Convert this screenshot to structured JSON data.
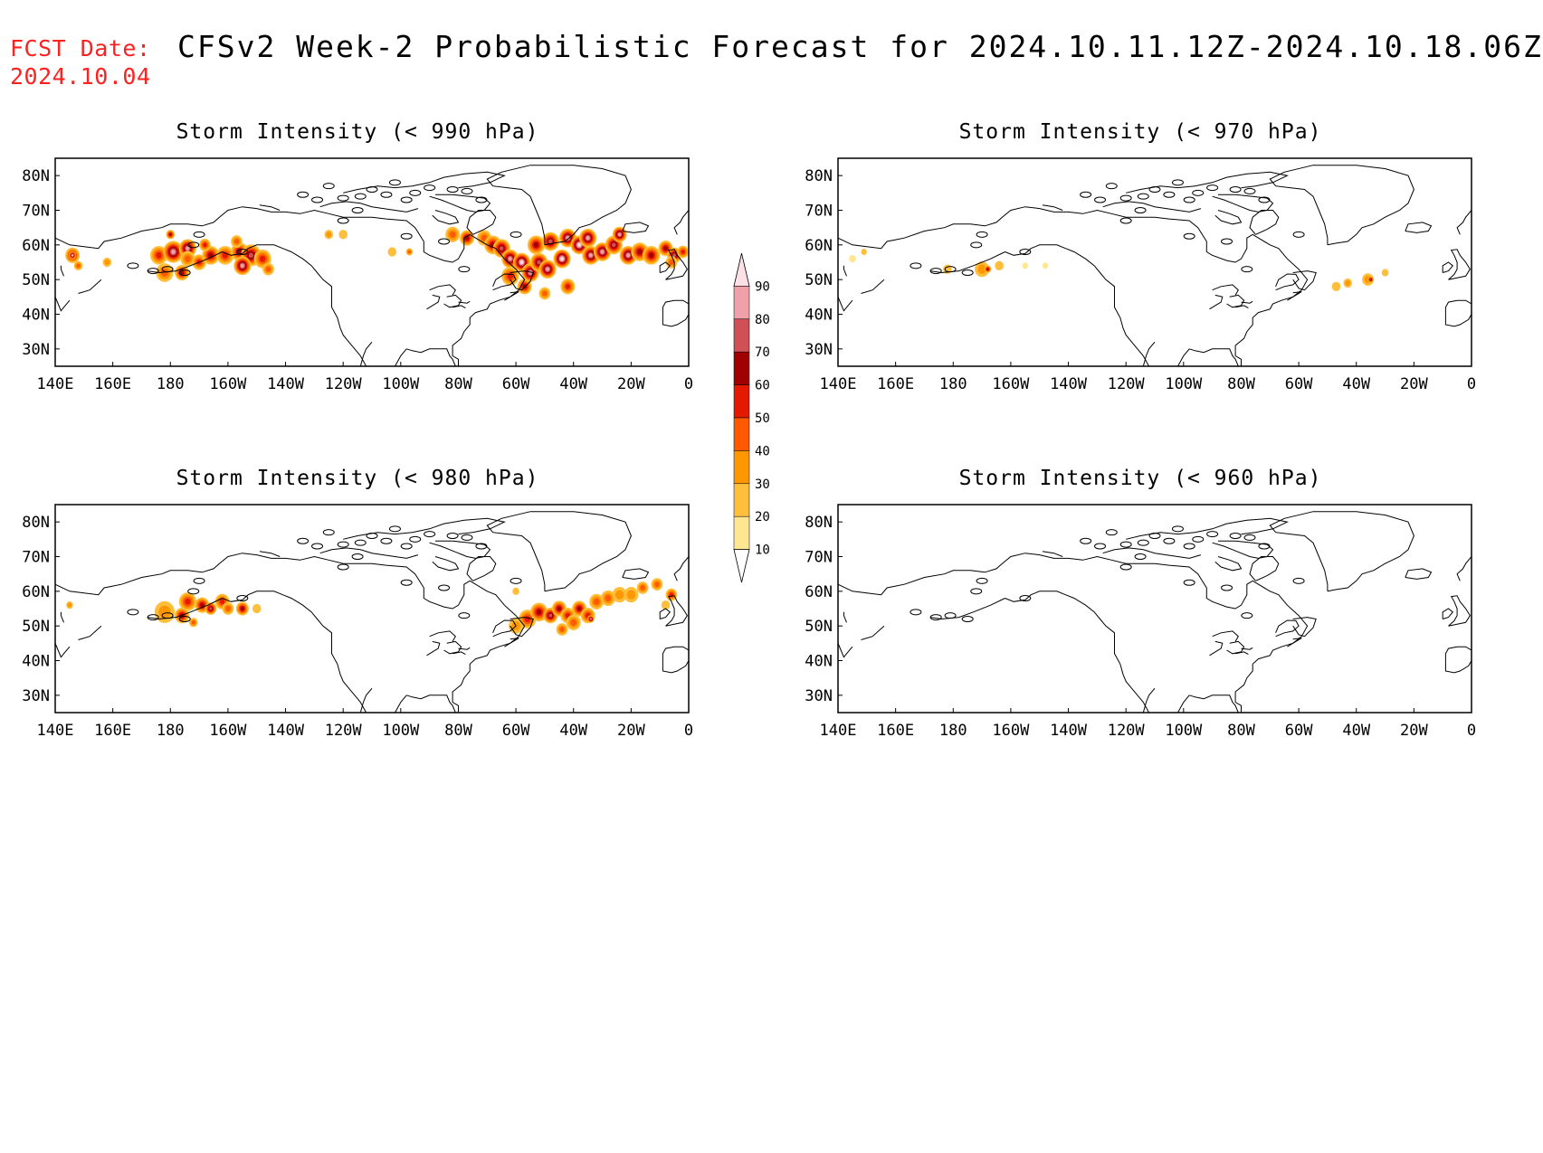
{
  "header": {
    "fcst_label": "FCST Date:",
    "fcst_date": "2024.10.04",
    "title": "CFSv2 Week-2 Probabilistic Forecast for 2024.10.11.12Z-2024.10.18.06Z"
  },
  "panels": [
    {
      "title": "Storm Intensity (< 990 hPa)",
      "threshold_hpa": 990
    },
    {
      "title": "Storm Intensity (< 970 hPa)",
      "threshold_hpa": 970
    },
    {
      "title": "Storm Intensity (< 980 hPa)",
      "threshold_hpa": 980
    },
    {
      "title": "Storm Intensity (< 960 hPa)",
      "threshold_hpa": 960
    }
  ],
  "axes": {
    "lon_labels": [
      "140E",
      "160E",
      "180",
      "160W",
      "140W",
      "120W",
      "100W",
      "80W",
      "60W",
      "40W",
      "20W",
      "0"
    ],
    "lat_labels": [
      "80N",
      "70N",
      "60N",
      "50N",
      "40N",
      "30N"
    ],
    "lon_range": [
      140,
      360
    ],
    "lat_range": [
      25,
      85
    ]
  },
  "colorbar": {
    "levels": [
      "10",
      "20",
      "30",
      "40",
      "50",
      "60",
      "70",
      "80",
      "90"
    ],
    "colors": [
      "#fff8c8",
      "#ffe690",
      "#ffbf3c",
      "#ff9800",
      "#ff5a00",
      "#e41a00",
      "#a00000",
      "#d05058",
      "#f0a0a8",
      "#fce0e6"
    ]
  }
}
